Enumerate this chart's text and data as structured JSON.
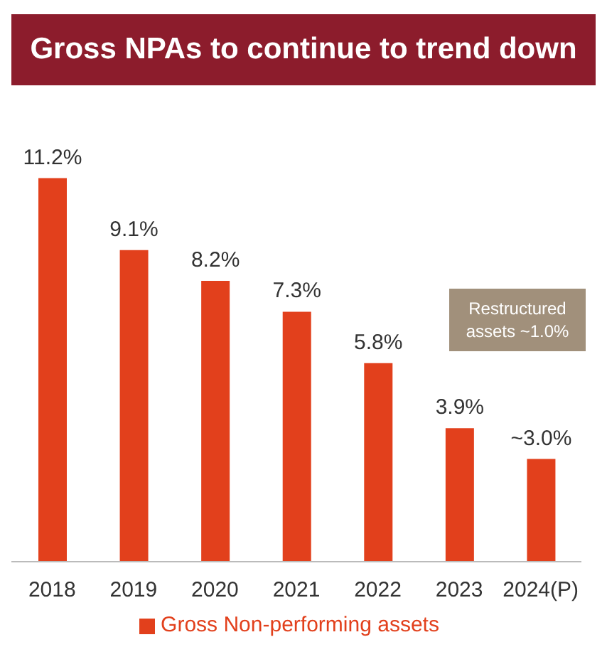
{
  "chart_data": {
    "type": "bar",
    "title": "Gross NPAs to continue to trend down",
    "categories": [
      "2018",
      "2019",
      "2020",
      "2021",
      "2022",
      "2023",
      "2024(P)"
    ],
    "series": [
      {
        "name": "Gross Non-performing assets",
        "color": "#e2401c",
        "values": [
          11.2,
          9.1,
          8.2,
          7.3,
          5.8,
          3.9,
          3.0
        ],
        "value_labels": [
          "11.2%",
          "9.1%",
          "8.2%",
          "7.3%",
          "5.8%",
          "3.9%",
          "~3.0%"
        ]
      }
    ],
    "annotations": [
      "Restructured assets ~1.0%"
    ],
    "legend": "bottom",
    "grid": false
  }
}
